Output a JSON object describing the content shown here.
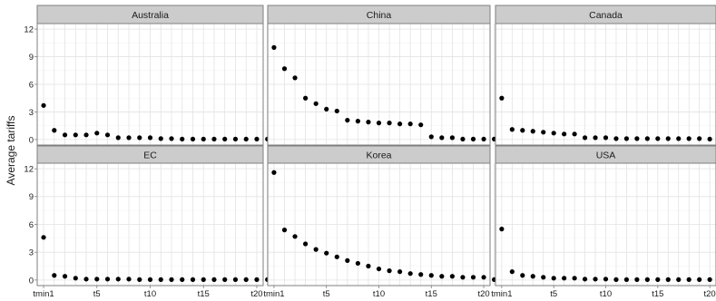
{
  "chart_data": {
    "type": "scatter",
    "ylabel": "Average tariffs",
    "xlabel": "",
    "x": [
      "tmin1",
      "t1",
      "t2",
      "t3",
      "t4",
      "t5",
      "t6",
      "t7",
      "t8",
      "t9",
      "t10",
      "t11",
      "t12",
      "t13",
      "t14",
      "t15",
      "t16",
      "t17",
      "t18",
      "t19",
      "t20",
      "t21"
    ],
    "x_tick_labels": [
      "tmin1",
      "t5",
      "t10",
      "t15",
      "t20"
    ],
    "y_ticks": [
      0,
      3,
      6,
      9,
      12
    ],
    "ylim": [
      -0.6,
      12.6
    ],
    "grid": true,
    "point_color": "#000000",
    "panels": [
      {
        "name": "Australia",
        "values": [
          3.7,
          1.0,
          0.5,
          0.5,
          0.5,
          0.7,
          0.5,
          0.2,
          0.2,
          0.2,
          0.2,
          0.1,
          0.1,
          0.05,
          0.05,
          0.05,
          0.05,
          0.05,
          0.05,
          0.05,
          0.05,
          0.05
        ]
      },
      {
        "name": "China",
        "values": [
          10.0,
          7.7,
          6.7,
          4.5,
          3.9,
          3.3,
          3.1,
          2.1,
          2.0,
          1.9,
          1.8,
          1.8,
          1.7,
          1.7,
          1.6,
          0.3,
          0.2,
          0.2,
          0.05,
          0.05,
          0.05,
          0.05
        ]
      },
      {
        "name": "Canada",
        "values": [
          4.5,
          1.1,
          1.0,
          0.9,
          0.8,
          0.7,
          0.6,
          0.6,
          0.2,
          0.2,
          0.2,
          0.1,
          0.1,
          0.1,
          0.1,
          0.1,
          0.1,
          0.1,
          0.1,
          0.1,
          0.05,
          0.05
        ]
      },
      {
        "name": "EC",
        "values": [
          4.6,
          0.5,
          0.4,
          0.2,
          0.1,
          0.1,
          0.1,
          0.1,
          0.1,
          0.05,
          0.05,
          0.05,
          0.05,
          0.05,
          0.05,
          0.05,
          0.05,
          0.05,
          0.05,
          0.05,
          0.05,
          0.05
        ]
      },
      {
        "name": "Korea",
        "values": [
          11.6,
          5.4,
          4.7,
          3.9,
          3.3,
          2.9,
          2.5,
          2.1,
          1.8,
          1.5,
          1.2,
          1.0,
          0.9,
          0.7,
          0.6,
          0.5,
          0.4,
          0.4,
          0.3,
          0.3,
          0.3,
          0.05
        ]
      },
      {
        "name": "USA",
        "values": [
          5.5,
          0.9,
          0.5,
          0.4,
          0.3,
          0.2,
          0.2,
          0.2,
          0.1,
          0.1,
          0.1,
          0.05,
          0.05,
          0.05,
          0.05,
          0.05,
          0.05,
          0.05,
          0.05,
          0.05,
          0.05,
          0.05
        ]
      }
    ]
  }
}
